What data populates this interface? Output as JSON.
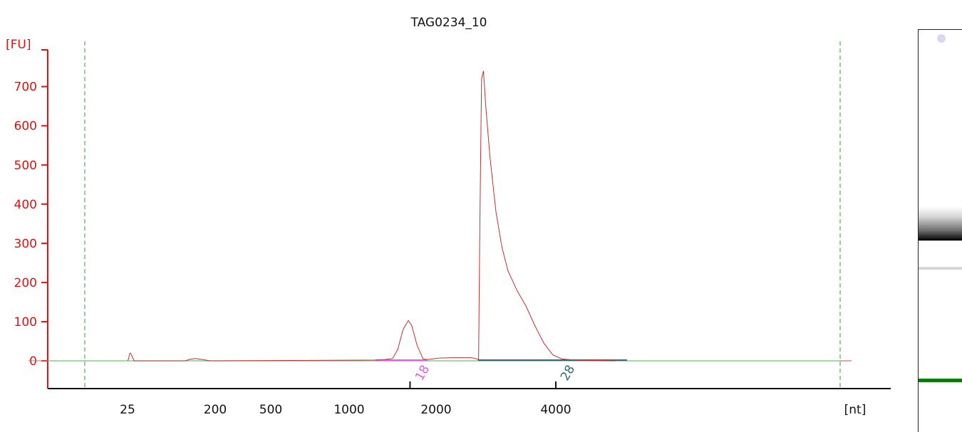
{
  "chart_data": {
    "type": "line",
    "title": "TAG0234_10",
    "ylabel": "[FU]",
    "xlabel": "[nt]",
    "ylim": [
      -70,
      800
    ],
    "yticks": [
      0,
      100,
      200,
      300,
      400,
      500,
      600,
      700
    ],
    "xtick_labels": [
      "25",
      "200",
      "500",
      "1000",
      "2000",
      "4000"
    ],
    "series": [
      {
        "color": "#c03030",
        "points": [
          [
            25,
            0
          ],
          [
            27,
            5
          ],
          [
            29,
            18
          ],
          [
            31,
            20
          ],
          [
            34,
            12
          ],
          [
            38,
            0
          ],
          [
            140,
            0
          ],
          [
            150,
            4
          ],
          [
            160,
            6
          ],
          [
            175,
            3
          ],
          [
            190,
            0
          ],
          [
            1300,
            2
          ],
          [
            1400,
            3
          ],
          [
            1500,
            6
          ],
          [
            1560,
            30
          ],
          [
            1620,
            80
          ],
          [
            1680,
            103
          ],
          [
            1720,
            90
          ],
          [
            1780,
            40
          ],
          [
            1850,
            5
          ],
          [
            1900,
            3
          ],
          [
            2050,
            7
          ],
          [
            2300,
            8
          ],
          [
            2600,
            8
          ],
          [
            2700,
            4
          ],
          [
            2710,
            0
          ],
          [
            2730,
            330
          ],
          [
            2760,
            720
          ],
          [
            2790,
            740
          ],
          [
            2830,
            650
          ],
          [
            2900,
            520
          ],
          [
            3000,
            380
          ],
          [
            3100,
            290
          ],
          [
            3200,
            230
          ],
          [
            3350,
            180
          ],
          [
            3500,
            140
          ],
          [
            3650,
            90
          ],
          [
            3800,
            45
          ],
          [
            3950,
            15
          ],
          [
            4100,
            5
          ],
          [
            4300,
            2
          ],
          [
            4600,
            1
          ],
          [
            5000,
            0
          ]
        ]
      }
    ],
    "baseline": {
      "color": "#6fc46f",
      "value": 0
    },
    "regions": [
      {
        "label": "18",
        "color": "#e060e0",
        "x": [
          1300,
          1900
        ]
      },
      {
        "label": "28",
        "color": "#2e6e6e",
        "x": [
          2700,
          5200
        ]
      }
    ],
    "lower_markers": [
      1700,
      4000
    ],
    "upper_marker_lines": [
      "#3a9a3a"
    ],
    "grid": false
  },
  "gel": {
    "bands": [
      "marker-spot",
      "main-band",
      "faint-band",
      "green-marker-band"
    ]
  }
}
